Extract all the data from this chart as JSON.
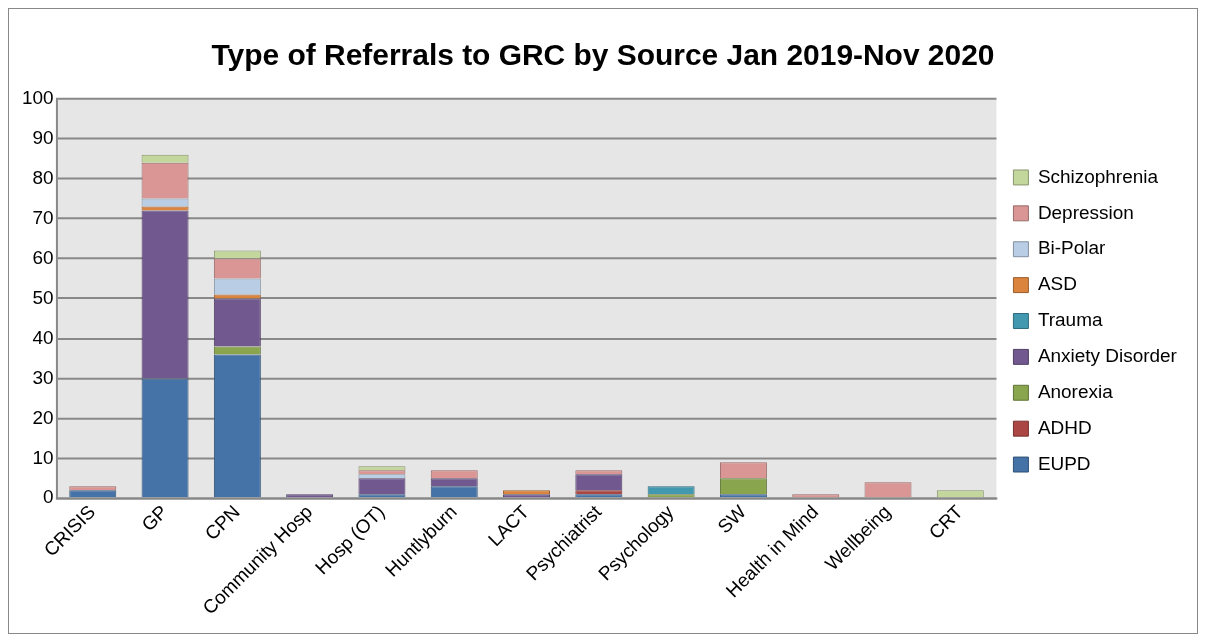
{
  "chart_data": {
    "type": "bar",
    "title": "Type of Referrals to GRC by Source Jan 2019-Nov 2020",
    "categories": [
      "CRISIS",
      "GP",
      "CPN",
      "Community Hosp",
      "Hosp (OT)",
      "Huntlyburn",
      "LACT",
      "Psychiatrist",
      "Psychology",
      "SW",
      "Health in Mind",
      "Wellbeing",
      "CRT"
    ],
    "stacked": true,
    "series": [
      {
        "name": "EUPD",
        "color": "#4572a7",
        "values": [
          2,
          30,
          36,
          0,
          1,
          3,
          0,
          1,
          0,
          1,
          0,
          0,
          0
        ]
      },
      {
        "name": "ADHD",
        "color": "#aa4643",
        "values": [
          0,
          0,
          0,
          0,
          0,
          0,
          0,
          1,
          0,
          0,
          0,
          0,
          0
        ]
      },
      {
        "name": "Anorexia",
        "color": "#89a54e",
        "values": [
          0,
          0,
          2,
          0,
          0,
          0,
          0,
          0,
          1,
          4,
          0,
          0,
          0
        ]
      },
      {
        "name": "Anxiety Disorder",
        "color": "#71588f",
        "values": [
          0,
          42,
          12,
          1,
          4,
          2,
          1,
          4,
          0,
          0,
          0,
          0,
          0
        ]
      },
      {
        "name": "Trauma",
        "color": "#4198af",
        "values": [
          0,
          0,
          0,
          0,
          0,
          0,
          0,
          0,
          2,
          0,
          0,
          0,
          0
        ]
      },
      {
        "name": "ASD",
        "color": "#db843d",
        "values": [
          0,
          1,
          1,
          0,
          0,
          0,
          1,
          0,
          0,
          0,
          0,
          0,
          0
        ]
      },
      {
        "name": "Bi-Polar",
        "color": "#b9cde5",
        "values": [
          0,
          2,
          4,
          0,
          1,
          0,
          0,
          0,
          0,
          0,
          0,
          0,
          0
        ]
      },
      {
        "name": "Depression",
        "color": "#d99694",
        "values": [
          1,
          9,
          5,
          0,
          1,
          2,
          0,
          1,
          0,
          4,
          1,
          4,
          0
        ]
      },
      {
        "name": "Schizophrenia",
        "color": "#c3d69b",
        "values": [
          0,
          2,
          2,
          0,
          1,
          0,
          0,
          0,
          0,
          0,
          0,
          0,
          2
        ]
      }
    ],
    "ylim": [
      0,
      100
    ],
    "yticks": [
      0,
      10,
      20,
      30,
      40,
      50,
      60,
      70,
      80,
      90,
      100
    ],
    "grid": "y",
    "legend": "right"
  }
}
